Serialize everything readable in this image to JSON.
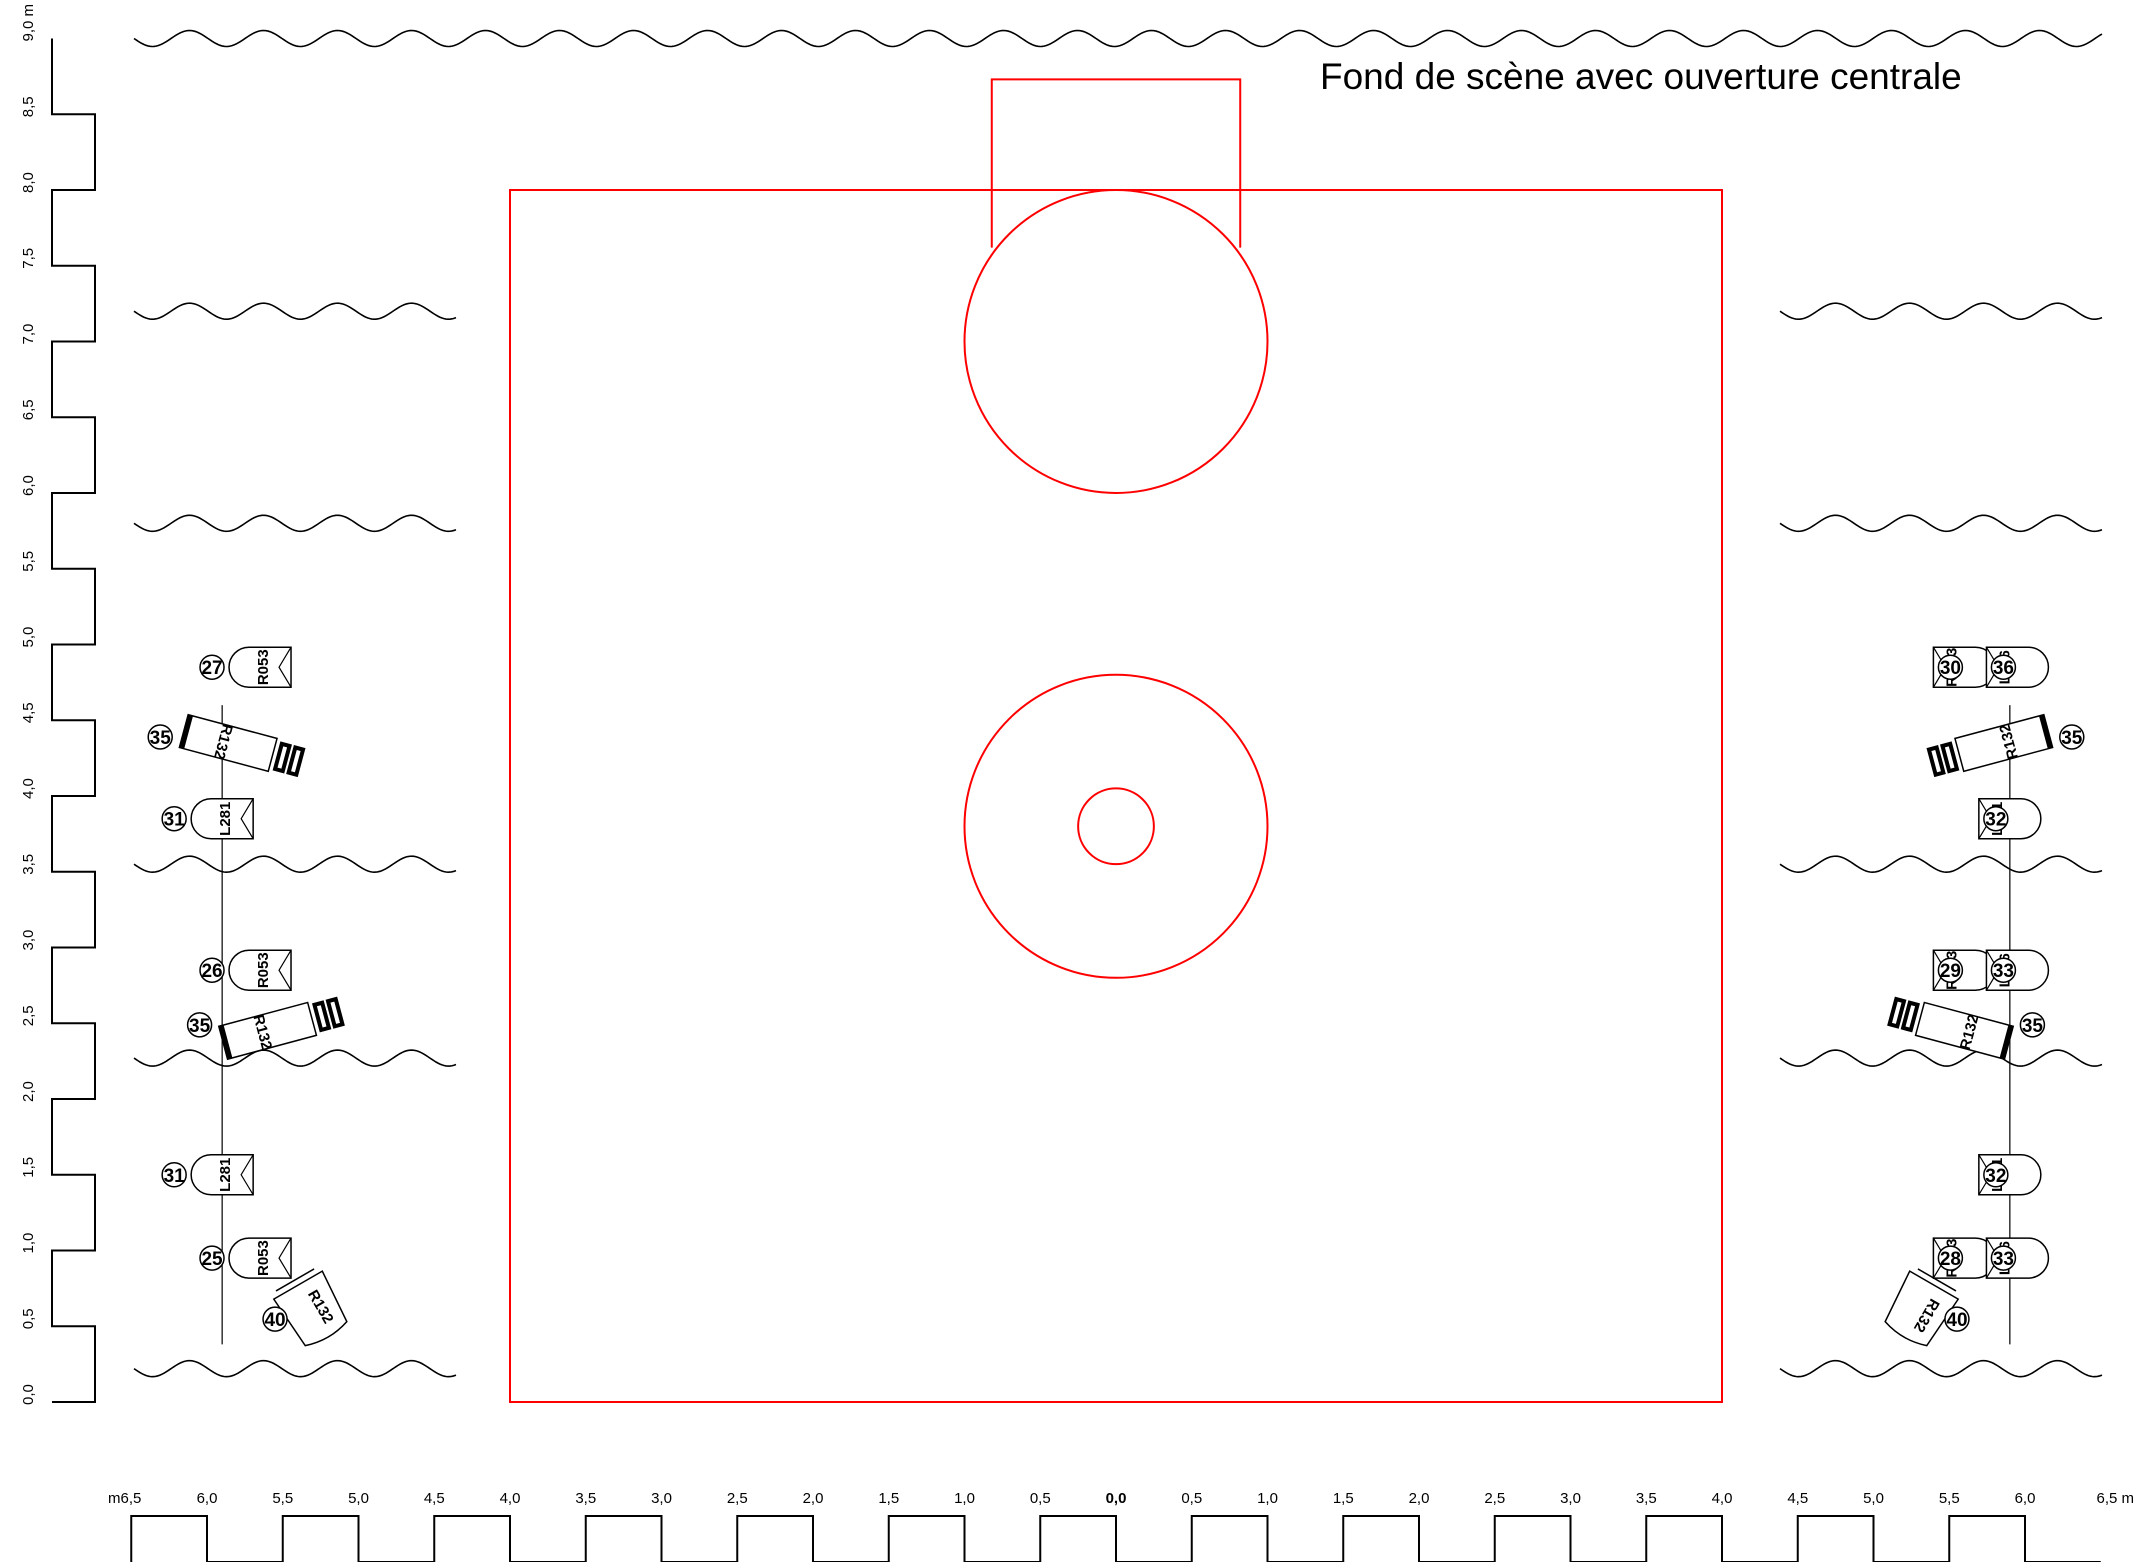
{
  "title": "Fond de scène avec ouverture centrale",
  "colors": {
    "stage": "#ff0000",
    "ink": "#000000",
    "background": "#ffffff"
  },
  "scale": {
    "vertical": {
      "unit": "m",
      "min": 0.0,
      "max": 9.0,
      "step": 0.5,
      "labels": [
        "0,0",
        "0,5",
        "1,0",
        "1,5",
        "2,0",
        "2,5",
        "3,0",
        "3,5",
        "4,0",
        "4,5",
        "5,0",
        "5,5",
        "6,0",
        "6,5",
        "7,0",
        "7,5",
        "8,0",
        "8,5",
        "9,0 m"
      ]
    },
    "horizontal": {
      "unit": "m",
      "min": -6.5,
      "max": 6.5,
      "step": 0.5,
      "labels": [
        "m6,5",
        "6,0",
        "5,5",
        "5,0",
        "4,5",
        "4,0",
        "3,5",
        "3,0",
        "2,5",
        "2,0",
        "1,5",
        "1,0",
        "0,5",
        "0,0",
        "0,5",
        "1,0",
        "1,5",
        "2,0",
        "2,5",
        "3,0",
        "3,5",
        "4,0",
        "4,5",
        "5,0",
        "5,5",
        "6,0",
        "6,5 m"
      ]
    }
  },
  "stage": {
    "floor": {
      "x": [
        -4.0,
        4.0
      ],
      "y": [
        0.0,
        8.0
      ]
    },
    "rear_opening": {
      "x": [
        -0.82,
        0.82
      ],
      "y": [
        7.62,
        8.73
      ]
    },
    "circles": [
      {
        "cx": 0.0,
        "cy": 7.0,
        "r": 1.0
      },
      {
        "cx": 0.0,
        "cy": 3.8,
        "r": 1.0
      },
      {
        "cx": 0.0,
        "cy": 3.8,
        "r": 0.25
      }
    ]
  },
  "borders": [
    {
      "y": 9.0,
      "x": [
        -6.5,
        6.5
      ]
    },
    {
      "y": 7.2,
      "sides": true
    },
    {
      "y": 5.8,
      "sides": true
    },
    {
      "y": 3.55,
      "sides": true
    },
    {
      "y": 2.27,
      "sides": true
    },
    {
      "y": 0.22,
      "sides": true
    }
  ],
  "booms": [
    {
      "x": -5.9,
      "y": [
        0.38,
        4.6
      ]
    },
    {
      "x": 5.9,
      "y": [
        0.38,
        4.6
      ]
    }
  ],
  "fixtures": [
    {
      "side": "left",
      "type": "fresnel",
      "channel": "27",
      "gel": "R053",
      "x": -5.65,
      "y": 4.85
    },
    {
      "side": "left",
      "type": "profile",
      "channel": "35",
      "gel": "R132",
      "x": -5.86,
      "y": 4.35,
      "angle": 15
    },
    {
      "side": "left",
      "type": "pc",
      "channel": "31",
      "gel": "L281",
      "x": -5.9,
      "y": 3.85
    },
    {
      "side": "left",
      "type": "fresnel",
      "channel": "26",
      "gel": "R053",
      "x": -5.65,
      "y": 2.85
    },
    {
      "side": "left",
      "type": "profile",
      "channel": "35",
      "gel": "R132",
      "x": -5.6,
      "y": 2.45,
      "angle": -15
    },
    {
      "side": "left",
      "type": "pc",
      "channel": "31",
      "gel": "L281",
      "x": -5.9,
      "y": 1.5
    },
    {
      "side": "left",
      "type": "fresnel",
      "channel": "25",
      "gel": "R053",
      "x": -5.65,
      "y": 0.95
    },
    {
      "side": "left",
      "type": "flood",
      "channel": "40",
      "gel": "R132",
      "x": -5.3,
      "y": 0.6,
      "angle": -30
    },
    {
      "side": "right",
      "type": "fresnel",
      "channel": "30",
      "gel": "RO53",
      "x": 5.6,
      "y": 4.85
    },
    {
      "side": "right",
      "type": "fresnel",
      "channel": "36",
      "gel": "L176",
      "x": 5.95,
      "y": 4.85
    },
    {
      "side": "right",
      "type": "profile",
      "channel": "35",
      "gel": "R132",
      "x": 5.86,
      "y": 4.35,
      "angle": -15
    },
    {
      "side": "right",
      "type": "pc",
      "channel": "32",
      "gel": "L281",
      "x": 5.9,
      "y": 3.85
    },
    {
      "side": "right",
      "type": "fresnel",
      "channel": "29",
      "gel": "RO53",
      "x": 5.6,
      "y": 2.85
    },
    {
      "side": "right",
      "type": "fresnel",
      "channel": "33",
      "gel": "L176",
      "x": 5.95,
      "y": 2.85
    },
    {
      "side": "right",
      "type": "profile",
      "channel": "35",
      "gel": "R132",
      "x": 5.6,
      "y": 2.45,
      "angle": 15
    },
    {
      "side": "right",
      "type": "pc",
      "channel": "32",
      "gel": "L281",
      "x": 5.9,
      "y": 1.5
    },
    {
      "side": "right",
      "type": "fresnel",
      "channel": "28",
      "gel": "RO53",
      "x": 5.6,
      "y": 0.95
    },
    {
      "side": "right",
      "type": "fresnel",
      "channel": "33",
      "gel": "L176",
      "x": 5.95,
      "y": 0.95
    },
    {
      "side": "right",
      "type": "flood",
      "channel": "40",
      "gel": "R132",
      "x": 5.3,
      "y": 0.6,
      "angle": 30
    }
  ]
}
